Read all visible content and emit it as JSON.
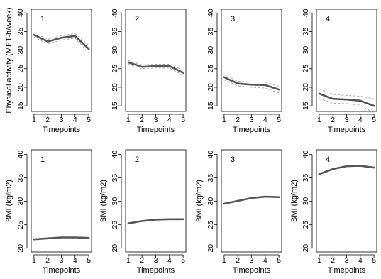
{
  "chart_data": [
    {
      "type": "line",
      "panel": "1",
      "xlabel": "Timepoints",
      "ylabel": "Physical activity (MET-h/week)",
      "x": [
        1,
        2,
        3,
        4,
        5
      ],
      "xticks": [
        1,
        2,
        3,
        4,
        5
      ],
      "ylim": [
        13.5,
        41
      ],
      "yticks": [
        15,
        20,
        25,
        30,
        35,
        40
      ],
      "series": [
        {
          "values": [
            34.1,
            32.3,
            33.3,
            33.8,
            30.3
          ]
        },
        {
          "values": [
            34.7,
            32.9,
            33.9,
            34.4,
            31.3
          ]
        },
        {
          "values": [
            33.5,
            31.7,
            32.7,
            33.2,
            29.3
          ]
        }
      ]
    },
    {
      "type": "line",
      "panel": "2",
      "xlabel": "Timepoints",
      "ylabel": "",
      "x": [
        1,
        2,
        3,
        4,
        5
      ],
      "xticks": [
        1,
        2,
        3,
        4,
        5
      ],
      "ylim": [
        13.5,
        41
      ],
      "yticks": [
        15,
        20,
        25,
        30,
        35,
        40
      ],
      "series": [
        {
          "values": [
            26.7,
            25.5,
            25.7,
            25.7,
            23.9
          ]
        },
        {
          "values": [
            27.2,
            26.0,
            26.2,
            26.2,
            24.6
          ]
        },
        {
          "values": [
            26.2,
            25.0,
            25.2,
            25.2,
            23.2
          ]
        }
      ]
    },
    {
      "type": "line",
      "panel": "3",
      "xlabel": "Timepoints",
      "ylabel": "",
      "x": [
        1,
        2,
        3,
        4,
        5
      ],
      "xticks": [
        1,
        2,
        3,
        4,
        5
      ],
      "ylim": [
        13.5,
        41
      ],
      "yticks": [
        15,
        20,
        25,
        30,
        35,
        40
      ],
      "series": [
        {
          "values": [
            22.7,
            21.0,
            20.7,
            20.6,
            19.4
          ]
        },
        {
          "values": [
            23.4,
            21.6,
            21.4,
            21.4,
            20.3
          ]
        },
        {
          "values": [
            22.0,
            20.4,
            20.0,
            19.8,
            18.5
          ]
        }
      ]
    },
    {
      "type": "line",
      "panel": "4",
      "xlabel": "Timepoints",
      "ylabel": "",
      "x": [
        1,
        2,
        3,
        4,
        5
      ],
      "xticks": [
        1,
        2,
        3,
        4,
        5
      ],
      "ylim": [
        13.5,
        41
      ],
      "yticks": [
        15,
        20,
        25,
        30,
        35,
        40
      ],
      "series": [
        {
          "values": [
            18.3,
            16.9,
            16.7,
            16.4,
            15.0
          ]
        },
        {
          "values": [
            19.6,
            18.1,
            17.8,
            17.6,
            16.9
          ]
        },
        {
          "values": [
            17.0,
            15.7,
            15.6,
            15.2,
            13.1
          ]
        }
      ]
    },
    {
      "type": "line",
      "panel": "1",
      "xlabel": "Timepoints",
      "ylabel": "BMI (kg/m2)",
      "x": [
        1,
        2,
        3,
        4,
        5
      ],
      "xticks": [
        1,
        2,
        3,
        4,
        5
      ],
      "ylim": [
        19.2,
        41
      ],
      "yticks": [
        20,
        25,
        30,
        35,
        40
      ],
      "series": [
        {
          "values": [
            21.9,
            22.1,
            22.3,
            22.3,
            22.2
          ]
        },
        {
          "values": [
            22.0,
            22.2,
            22.4,
            22.4,
            22.3
          ]
        },
        {
          "values": [
            21.8,
            22.0,
            22.2,
            22.2,
            22.1
          ]
        }
      ]
    },
    {
      "type": "line",
      "panel": "2",
      "xlabel": "Timepoints",
      "ylabel": "BMI (kg/m2)",
      "x": [
        1,
        2,
        3,
        4,
        5
      ],
      "xticks": [
        1,
        2,
        3,
        4,
        5
      ],
      "ylim": [
        19.2,
        41
      ],
      "yticks": [
        20,
        25,
        30,
        35,
        40
      ],
      "series": [
        {
          "values": [
            25.3,
            25.8,
            26.1,
            26.2,
            26.2
          ]
        },
        {
          "values": [
            25.4,
            25.9,
            26.2,
            26.3,
            26.3
          ]
        },
        {
          "values": [
            25.2,
            25.7,
            26.0,
            26.1,
            26.1
          ]
        }
      ]
    },
    {
      "type": "line",
      "panel": "3",
      "xlabel": "Timepoints",
      "ylabel": "BMI (kg/m2)",
      "x": [
        1,
        2,
        3,
        4,
        5
      ],
      "xticks": [
        1,
        2,
        3,
        4,
        5
      ],
      "ylim": [
        19.2,
        41
      ],
      "yticks": [
        20,
        25,
        30,
        35,
        40
      ],
      "series": [
        {
          "values": [
            29.5,
            30.1,
            30.7,
            31.0,
            30.9
          ]
        },
        {
          "values": [
            29.6,
            30.2,
            30.8,
            31.1,
            31.0
          ]
        },
        {
          "values": [
            29.4,
            30.0,
            30.6,
            30.9,
            30.8
          ]
        }
      ]
    },
    {
      "type": "line",
      "panel": "4",
      "xlabel": "Timepoints",
      "ylabel": "BMI (kg/m2)",
      "x": [
        1,
        2,
        3,
        4,
        5
      ],
      "xticks": [
        1,
        2,
        3,
        4,
        5
      ],
      "ylim": [
        19.2,
        41
      ],
      "yticks": [
        20,
        25,
        30,
        35,
        40
      ],
      "series": [
        {
          "values": [
            35.8,
            36.9,
            37.5,
            37.6,
            37.2
          ]
        },
        {
          "values": [
            35.9,
            37.0,
            37.6,
            37.7,
            37.3
          ]
        },
        {
          "values": [
            35.7,
            36.8,
            37.4,
            37.5,
            37.1
          ]
        }
      ]
    }
  ]
}
